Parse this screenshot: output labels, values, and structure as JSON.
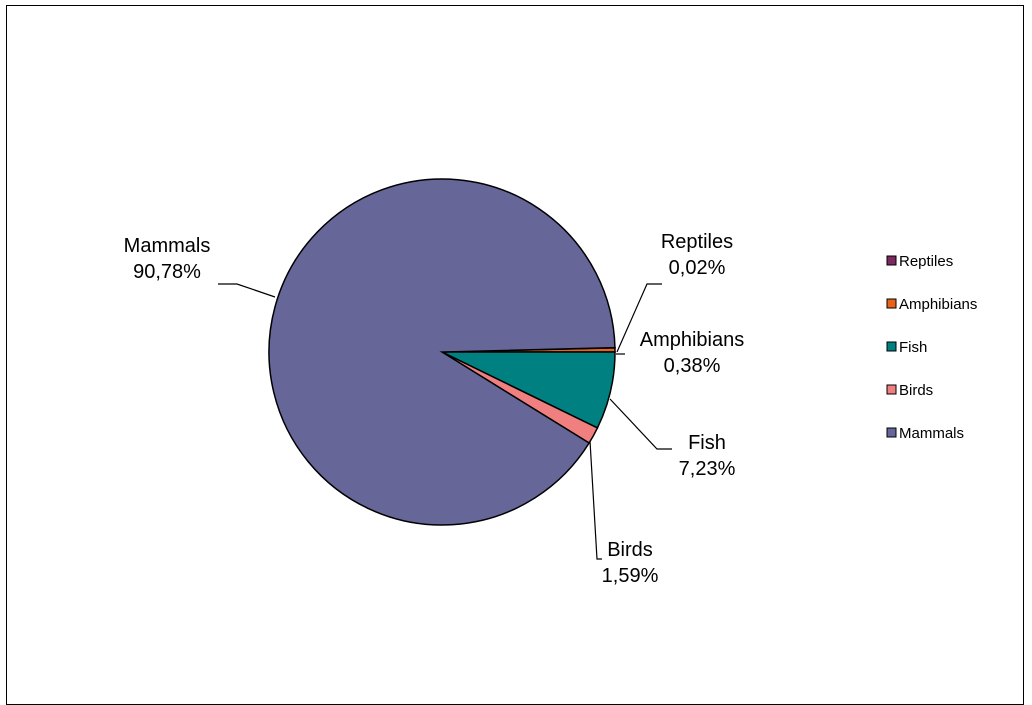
{
  "chart_data": {
    "type": "pie",
    "title": "",
    "slices": [
      {
        "name": "Reptiles",
        "value": 0.02,
        "label": "0,02%",
        "color": "#7a2a5e"
      },
      {
        "name": "Amphibians",
        "value": 0.38,
        "label": "0,38%",
        "color": "#e8641b"
      },
      {
        "name": "Fish",
        "value": 7.23,
        "label": "7,23%",
        "color": "#008080"
      },
      {
        "name": "Birds",
        "value": 1.59,
        "label": "1,59%",
        "color": "#f08080"
      },
      {
        "name": "Mammals",
        "value": 90.78,
        "label": "90,78%",
        "color": "#666699"
      }
    ],
    "legend": {
      "placement": "right",
      "entries": [
        "Reptiles",
        "Amphibians",
        "Fish",
        "Birds",
        "Mammals"
      ]
    }
  }
}
